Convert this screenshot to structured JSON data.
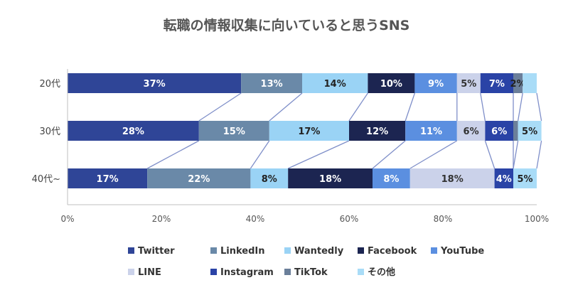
{
  "chart_data": {
    "type": "bar",
    "orientation": "horizontal",
    "stacked": true,
    "title": "転職の情報収集に向いていると思うSNS",
    "categories": [
      "20代",
      "30代",
      "40代~"
    ],
    "xlim": [
      0,
      100
    ],
    "x_ticks": [
      "0%",
      "20%",
      "40%",
      "60%",
      "80%",
      "100%"
    ],
    "series": [
      {
        "name": "Twitter",
        "color": "#2f4597",
        "label_color": "#ffffff",
        "values": [
          37,
          28,
          17
        ]
      },
      {
        "name": "LinkedIn",
        "color": "#6a89a8",
        "label_color": "#ffffff",
        "values": [
          13,
          15,
          22
        ]
      },
      {
        "name": "Wantedly",
        "color": "#9ad3f5",
        "label_color": "#222222",
        "values": [
          14,
          17,
          8
        ]
      },
      {
        "name": "Facebook",
        "color": "#1c2551",
        "label_color": "#ffffff",
        "values": [
          10,
          12,
          18
        ]
      },
      {
        "name": "YouTube",
        "color": "#5b8fe0",
        "label_color": "#ffffff",
        "values": [
          9,
          11,
          8
        ]
      },
      {
        "name": "LINE",
        "color": "#cbd2ea",
        "label_color": "#333333",
        "values": [
          5,
          6,
          18
        ]
      },
      {
        "name": "Instagram",
        "color": "#2a43a6",
        "label_color": "#ffffff",
        "values": [
          7,
          6,
          4
        ]
      },
      {
        "name": "TikTok",
        "color": "#6b7f9a",
        "label_color": "#222222",
        "values": [
          2,
          1,
          0
        ]
      },
      {
        "name": "その他",
        "color": "#a9dcf7",
        "label_color": "#222222",
        "values": [
          3,
          5,
          5
        ]
      }
    ],
    "data_labels": [
      [
        "37%",
        "13%",
        "14%",
        "10%",
        "9%",
        "5%",
        "7%",
        "2%",
        ""
      ],
      [
        "28%",
        "15%",
        "17%",
        "12%",
        "11%",
        "6%",
        "6%",
        "",
        "5%"
      ],
      [
        "17%",
        "22%",
        "8%",
        "18%",
        "8%",
        "18%",
        "4%",
        "",
        "5%"
      ]
    ],
    "series_lines": true,
    "grid": false,
    "legend_position": "bottom"
  }
}
